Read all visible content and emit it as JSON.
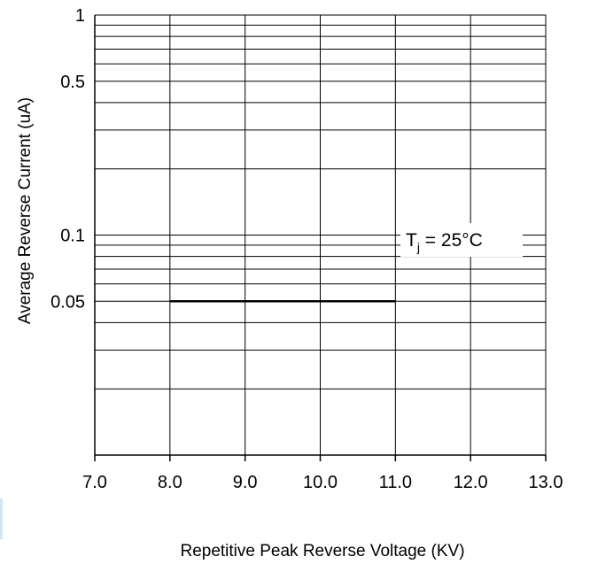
{
  "chart_data": {
    "type": "line",
    "title": "",
    "xlabel": "Repetitive Peak Reverse Voltage (KV)",
    "ylabel": "Average Reverse  Current  (uA)",
    "x_ticks": [
      "7.0",
      "8.0",
      "9.0",
      "10.0",
      "11.0",
      "12.0",
      "13.0"
    ],
    "y_ticks": [
      "1",
      "0.5",
      "0.1",
      "0.05"
    ],
    "xlim": [
      7.0,
      13.0
    ],
    "ylim": [
      0.01,
      1
    ],
    "y_scale": "log",
    "grid": true,
    "series": [
      {
        "x": [
          8.0,
          11.0
        ],
        "y": [
          0.05,
          0.05
        ],
        "color": "#000000"
      }
    ],
    "annotation": {
      "main": "T",
      "sub": "j",
      "rest": " = 25°C",
      "x": 11.0,
      "y": 0.1
    }
  },
  "colors": {
    "grid": "#000000",
    "series": "#000000",
    "background": "#ffffff",
    "edge_mark": "#cfe6f7"
  }
}
